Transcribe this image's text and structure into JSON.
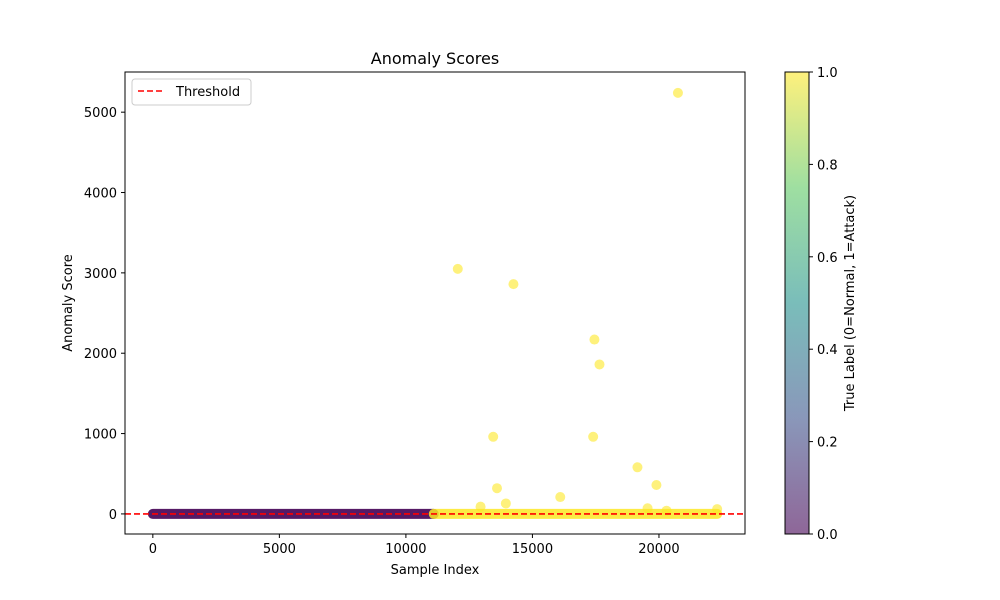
{
  "chart_data": {
    "type": "scatter",
    "title": "Anomaly Scores",
    "xlabel": "Sample Index",
    "ylabel": "Anomaly Score",
    "xlim": [
      -1100,
      23400
    ],
    "ylim": [
      -250,
      5500
    ],
    "xticks": [
      0,
      5000,
      10000,
      15000,
      20000
    ],
    "yticks": [
      0,
      1000,
      2000,
      3000,
      4000,
      5000
    ],
    "grid": false,
    "legend": {
      "position": "top-left",
      "entries": [
        "Threshold"
      ]
    },
    "threshold": {
      "name": "Threshold",
      "value": 0,
      "color": "#ff0000",
      "style": "dashed"
    },
    "colorbar": {
      "label": "True Label (0=Normal, 1=Attack)",
      "range": [
        0,
        1
      ],
      "ticks": [
        "0.0",
        "0.2",
        "0.4",
        "0.6",
        "0.8",
        "1.0"
      ],
      "colors": [
        "#440154",
        "#3b528b",
        "#21918c",
        "#5ec962",
        "#fde725"
      ]
    },
    "bands": [
      {
        "x_start": 0,
        "x_end": 11100,
        "y": 0,
        "label": 0
      },
      {
        "x_start": 11100,
        "x_end": 22300,
        "y": 0,
        "label": 1
      }
    ],
    "points": [
      {
        "x": 12050,
        "y": 3050,
        "label": 1
      },
      {
        "x": 14250,
        "y": 2860,
        "label": 1
      },
      {
        "x": 17450,
        "y": 2170,
        "label": 1
      },
      {
        "x": 17650,
        "y": 1860,
        "label": 1
      },
      {
        "x": 13450,
        "y": 960,
        "label": 1
      },
      {
        "x": 17400,
        "y": 960,
        "label": 1
      },
      {
        "x": 19150,
        "y": 580,
        "label": 1
      },
      {
        "x": 19900,
        "y": 360,
        "label": 1
      },
      {
        "x": 13600,
        "y": 320,
        "label": 1
      },
      {
        "x": 16100,
        "y": 210,
        "label": 1
      },
      {
        "x": 13950,
        "y": 130,
        "label": 1
      },
      {
        "x": 12950,
        "y": 90,
        "label": 1
      },
      {
        "x": 19550,
        "y": 70,
        "label": 1
      },
      {
        "x": 20300,
        "y": 40,
        "label": 1
      },
      {
        "x": 22300,
        "y": 60,
        "label": 1
      },
      {
        "x": 20750,
        "y": 5240,
        "label": 1
      }
    ]
  }
}
